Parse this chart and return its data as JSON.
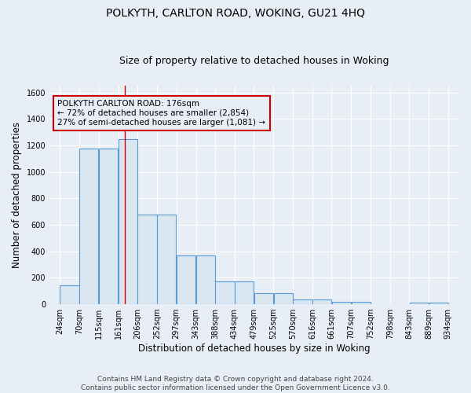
{
  "title": "POLKYTH, CARLTON ROAD, WOKING, GU21 4HQ",
  "subtitle": "Size of property relative to detached houses in Woking",
  "xlabel": "Distribution of detached houses by size in Woking",
  "ylabel": "Number of detached properties",
  "bar_left_edges": [
    24,
    70,
    115,
    161,
    206,
    252,
    297,
    343,
    388,
    434,
    479,
    525,
    570,
    616,
    661,
    707,
    752,
    798,
    843,
    889
  ],
  "bar_widths": [
    46,
    45,
    46,
    45,
    46,
    45,
    46,
    45,
    46,
    45,
    46,
    45,
    46,
    45,
    46,
    45,
    46,
    45,
    46,
    45
  ],
  "bar_heights": [
    145,
    1175,
    1175,
    1250,
    675,
    675,
    370,
    370,
    170,
    170,
    85,
    85,
    35,
    35,
    20,
    20,
    0,
    0,
    15,
    15
  ],
  "bar_color": "#dae6f0",
  "bar_edgecolor": "#5b9bd5",
  "annotation_text": "POLKYTH CARLTON ROAD: 176sqm\n← 72% of detached houses are smaller (2,854)\n27% of semi-detached houses are larger (1,081) →",
  "redline_x": 176,
  "ylim": [
    0,
    1650
  ],
  "yticks": [
    0,
    200,
    400,
    600,
    800,
    1000,
    1200,
    1400,
    1600
  ],
  "xtick_labels": [
    "24sqm",
    "70sqm",
    "115sqm",
    "161sqm",
    "206sqm",
    "252sqm",
    "297sqm",
    "343sqm",
    "388sqm",
    "434sqm",
    "479sqm",
    "525sqm",
    "570sqm",
    "616sqm",
    "661sqm",
    "707sqm",
    "752sqm",
    "798sqm",
    "843sqm",
    "889sqm",
    "934sqm"
  ],
  "xtick_positions": [
    24,
    70,
    115,
    161,
    206,
    252,
    297,
    343,
    388,
    434,
    479,
    525,
    570,
    616,
    661,
    707,
    752,
    798,
    843,
    889,
    934
  ],
  "footnote": "Contains HM Land Registry data © Crown copyright and database right 2024.\nContains public sector information licensed under the Open Government Licence v3.0.",
  "bg_color": "#e8eef5",
  "grid_color": "#d0dae4",
  "annotation_box_edgecolor": "#cc0000",
  "redline_color": "#cc0000",
  "title_fontsize": 10,
  "subtitle_fontsize": 9,
  "ylabel_fontsize": 8.5,
  "xlabel_fontsize": 8.5,
  "tick_fontsize": 7,
  "annotation_fontsize": 7.5,
  "footnote_fontsize": 6.5,
  "xlim": [
    0,
    960
  ]
}
